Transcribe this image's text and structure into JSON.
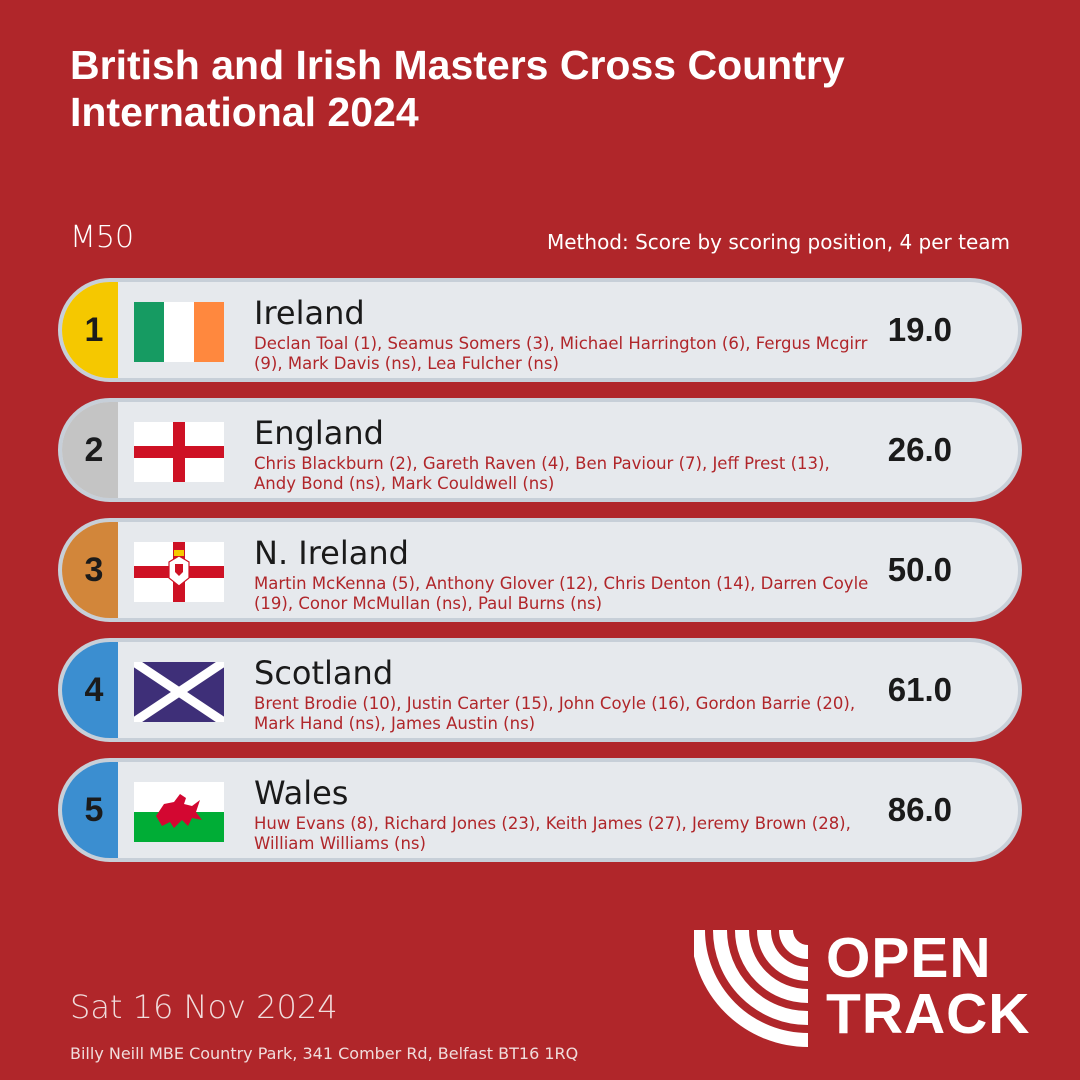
{
  "header": {
    "title": "British and Irish Masters Cross Country International 2024",
    "category": "M50",
    "method": "Method: Score by scoring position, 4 per team"
  },
  "colors": {
    "background": "#b0262a",
    "gold": "#f5c800",
    "silver": "#c4c4c4",
    "bronze": "#d2863a",
    "other": "#3b8ed0"
  },
  "results": [
    {
      "rank": "1",
      "team": "Ireland",
      "flag": "ireland-flag",
      "members": "Declan Toal (1), Seamus Somers (3), Michael Harrington (6), Fergus Mcgirr (9), Mark Davis (ns), Lea Fulcher (ns)",
      "score": "19.0",
      "medal_color": "#f5c800"
    },
    {
      "rank": "2",
      "team": "England",
      "flag": "england-flag",
      "members": "Chris Blackburn (2), Gareth Raven (4), Ben Paviour (7), Jeff Prest (13), Andy Bond (ns), Mark Couldwell (ns)",
      "score": "26.0",
      "medal_color": "#c4c4c4"
    },
    {
      "rank": "3",
      "team": "N. Ireland",
      "flag": "northern-ireland-flag",
      "members": "Martin McKenna (5), Anthony Glover (12), Chris Denton (14), Darren Coyle (19), Conor McMullan (ns), Paul Burns (ns)",
      "score": "50.0",
      "medal_color": "#d2863a"
    },
    {
      "rank": "4",
      "team": "Scotland",
      "flag": "scotland-flag",
      "members": "Brent Brodie (10), Justin Carter (15), John Coyle (16), Gordon Barrie (20), Mark Hand (ns), James Austin (ns)",
      "score": "61.0",
      "medal_color": "#3b8ed0"
    },
    {
      "rank": "5",
      "team": "Wales",
      "flag": "wales-flag",
      "members": "Huw Evans (8), Richard Jones (23), Keith James (27), Jeremy Brown (28), William Williams (ns)",
      "score": "86.0",
      "medal_color": "#3b8ed0"
    }
  ],
  "footer": {
    "date": "Sat 16 Nov 2024",
    "venue": "Billy Neill MBE Country Park, 341 Comber Rd, Belfast BT16 1RQ",
    "logo_line1": "OPEN",
    "logo_line2": "TRACK"
  }
}
